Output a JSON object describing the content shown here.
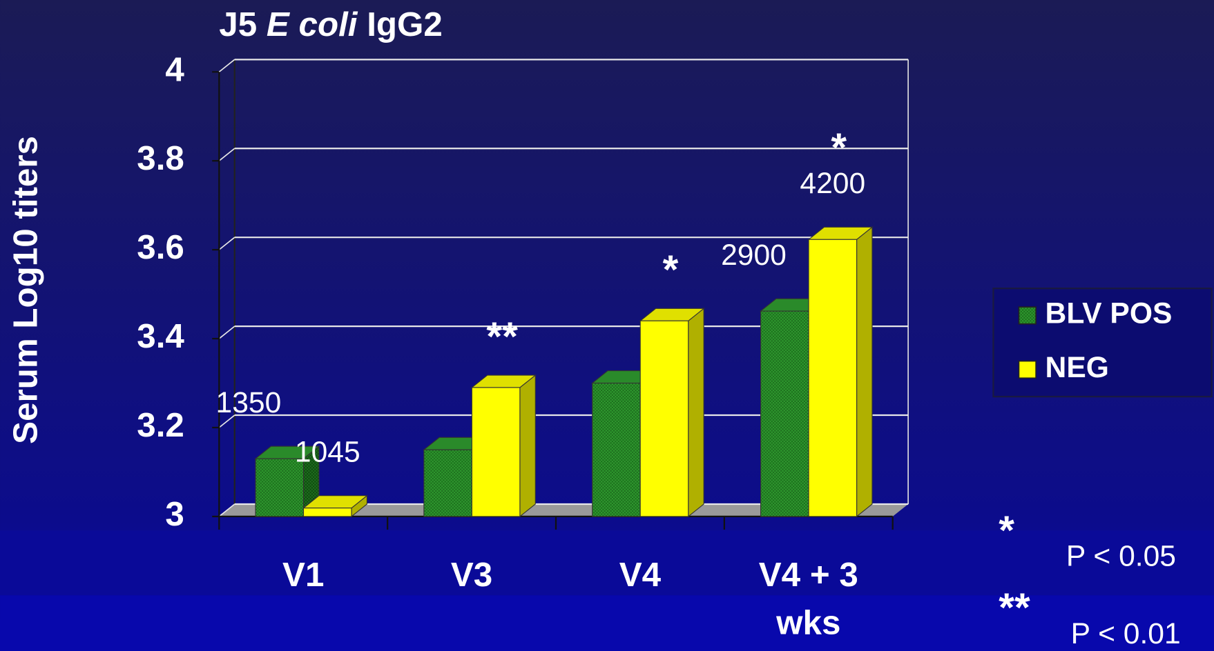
{
  "chart_data": {
    "type": "bar3d",
    "title": [
      "J5",
      "E coli",
      "IgG2"
    ],
    "y_label": "Serum Log10 titers",
    "categories": [
      "V1",
      "V3",
      "V4",
      "V4 + 3 wks"
    ],
    "series": [
      {
        "name": "BLV POS",
        "color": "#2f9a2f",
        "values": [
          3.13,
          3.15,
          3.3,
          3.462
        ],
        "value_labels": [
          "1350",
          null,
          null,
          "2900"
        ]
      },
      {
        "name": "NEG",
        "color": "#ffff00",
        "values": [
          3.019,
          3.29,
          3.44,
          3.623
        ],
        "value_labels": [
          "1045",
          null,
          null,
          "4200"
        ],
        "significance": [
          null,
          "**",
          "*",
          "*"
        ]
      }
    ],
    "ylim": [
      3,
      4
    ],
    "yticks": [
      3,
      3.2,
      3.4,
      3.6,
      3.8,
      4
    ],
    "grid": true,
    "legend": "right",
    "notes": [
      {
        "symbol": "*",
        "text": "P < 0.05"
      },
      {
        "symbol": "**",
        "text": "P < 0.01"
      }
    ]
  }
}
